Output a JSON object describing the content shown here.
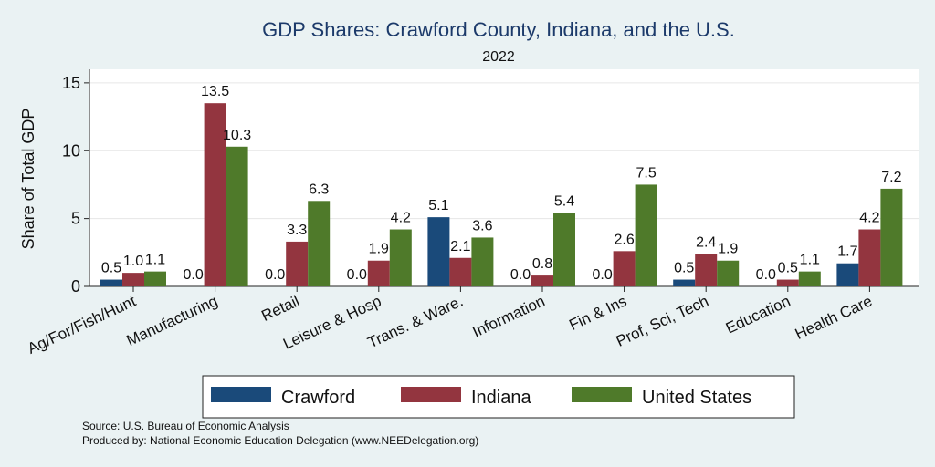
{
  "chart_data": {
    "type": "bar",
    "title": "GDP Shares: Crawford County, Indiana, and the U.S.",
    "subtitle": "2022",
    "ylabel": "Share of Total GDP",
    "xlabel": "",
    "ylim": [
      0,
      16
    ],
    "yticks": [
      0,
      5,
      10,
      15
    ],
    "grid": true,
    "legend_position": "bottom",
    "categories": [
      "Ag/For/Fish/Hunt",
      "Manufacturing",
      "Retail",
      "Leisure & Hosp",
      "Trans. & Ware.",
      "Information",
      "Fin & Ins",
      "Prof, Sci, Tech",
      "Education",
      "Health Care"
    ],
    "series": [
      {
        "name": "Crawford",
        "color": "#1a4a7a",
        "values": [
          0.5,
          0.0,
          0.0,
          0.0,
          5.1,
          0.0,
          0.0,
          0.5,
          0.0,
          1.7
        ],
        "labels": [
          "0.5",
          "0.0",
          "0.0",
          "0.0",
          "5.1",
          "0.0",
          "0.0",
          "0.5",
          "0.0",
          "1.7"
        ]
      },
      {
        "name": "Indiana",
        "color": "#93353f",
        "values": [
          1.0,
          13.5,
          3.3,
          1.9,
          2.1,
          0.8,
          2.6,
          2.4,
          0.5,
          4.2
        ],
        "labels": [
          "1.0",
          "13.5",
          "3.3",
          "1.9",
          "2.1",
          "0.8",
          "2.6",
          "2.4",
          "0.5",
          "4.2"
        ]
      },
      {
        "name": "United States",
        "color": "#4f7a2a",
        "values": [
          1.1,
          10.3,
          6.3,
          4.2,
          3.6,
          5.4,
          7.5,
          1.9,
          1.1,
          7.2
        ],
        "labels": [
          "1.1",
          "10.3",
          "6.3",
          "4.2",
          "3.6",
          "5.4",
          "7.5",
          "1.9",
          "1.1",
          "7.2"
        ]
      }
    ],
    "notes": [
      "Source: U.S. Bureau of Economic Analysis",
      "Produced by: National Economic Education Delegation (www.NEEDelegation.org)"
    ]
  }
}
